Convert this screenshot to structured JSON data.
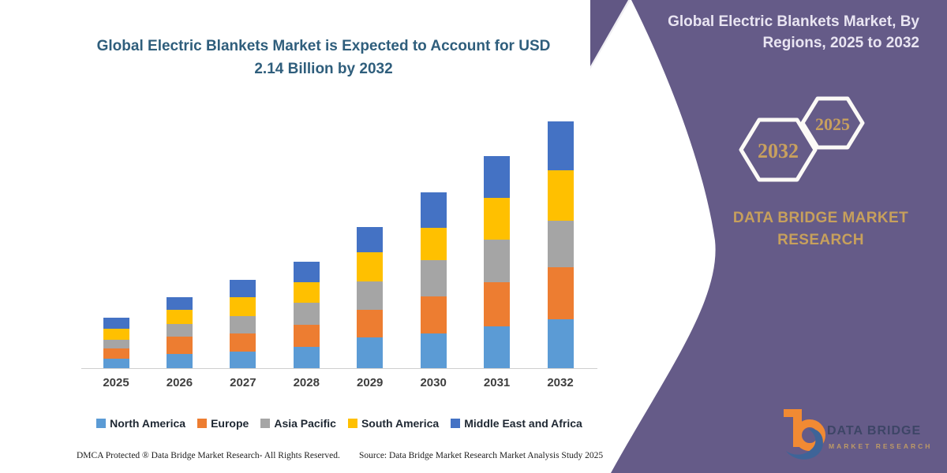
{
  "page": {
    "background": "#ffffff",
    "panel_purple": "#655B88",
    "accent_gold": "#C7A05C",
    "title_color": "#2F5E7C"
  },
  "main_title": {
    "line1": "Global Electric Blankets Market is Expected to Account for USD",
    "line2": "2.14 Billion by 2032"
  },
  "chart_data": {
    "type": "bar",
    "stacked": true,
    "title": "Global Electric Blankets Market is Expected to Account for USD 2.14 Billion by 2032",
    "unit": "USD Billion",
    "categories": [
      "2025",
      "2026",
      "2027",
      "2028",
      "2029",
      "2030",
      "2031",
      "2032"
    ],
    "series": [
      {
        "name": "North America",
        "color": "#5B9BD5",
        "values": [
          0.09,
          0.13,
          0.15,
          0.19,
          0.27,
          0.31,
          0.37,
          0.43
        ]
      },
      {
        "name": "Europe",
        "color": "#ED7D31",
        "values": [
          0.09,
          0.15,
          0.16,
          0.19,
          0.24,
          0.32,
          0.38,
          0.45
        ]
      },
      {
        "name": "Asia Pacific",
        "color": "#A5A5A5",
        "values": [
          0.07,
          0.11,
          0.15,
          0.19,
          0.25,
          0.31,
          0.37,
          0.4
        ]
      },
      {
        "name": "South America",
        "color": "#FFC000",
        "values": [
          0.1,
          0.12,
          0.16,
          0.18,
          0.25,
          0.28,
          0.36,
          0.44
        ]
      },
      {
        "name": "Middle East and Africa",
        "color": "#4472C4",
        "values": [
          0.09,
          0.11,
          0.15,
          0.18,
          0.22,
          0.31,
          0.36,
          0.42
        ]
      }
    ],
    "totals": [
      0.44,
      0.62,
      0.77,
      0.93,
      1.23,
      1.53,
      1.84,
      2.14
    ],
    "ylim": [
      0,
      2.25
    ],
    "grid": false,
    "legend_position": "bottom"
  },
  "right_panel": {
    "title_line1": "Global Electric Blankets Market, By",
    "title_line2": "Regions, 2025 to 2032",
    "hex_back_year": "2032",
    "hex_front_year": "2025",
    "brand_line1": "DATA BRIDGE MARKET",
    "brand_line2": "RESEARCH"
  },
  "logo": {
    "name": "DATA BRIDGE",
    "tagline": "MARKET RESEARCH"
  },
  "footer": {
    "dmca": "DMCA Protected ® Data Bridge Market Research-  All Rights Reserved.",
    "source": "Source: Data Bridge Market Research  Market Analysis Study 2025"
  }
}
